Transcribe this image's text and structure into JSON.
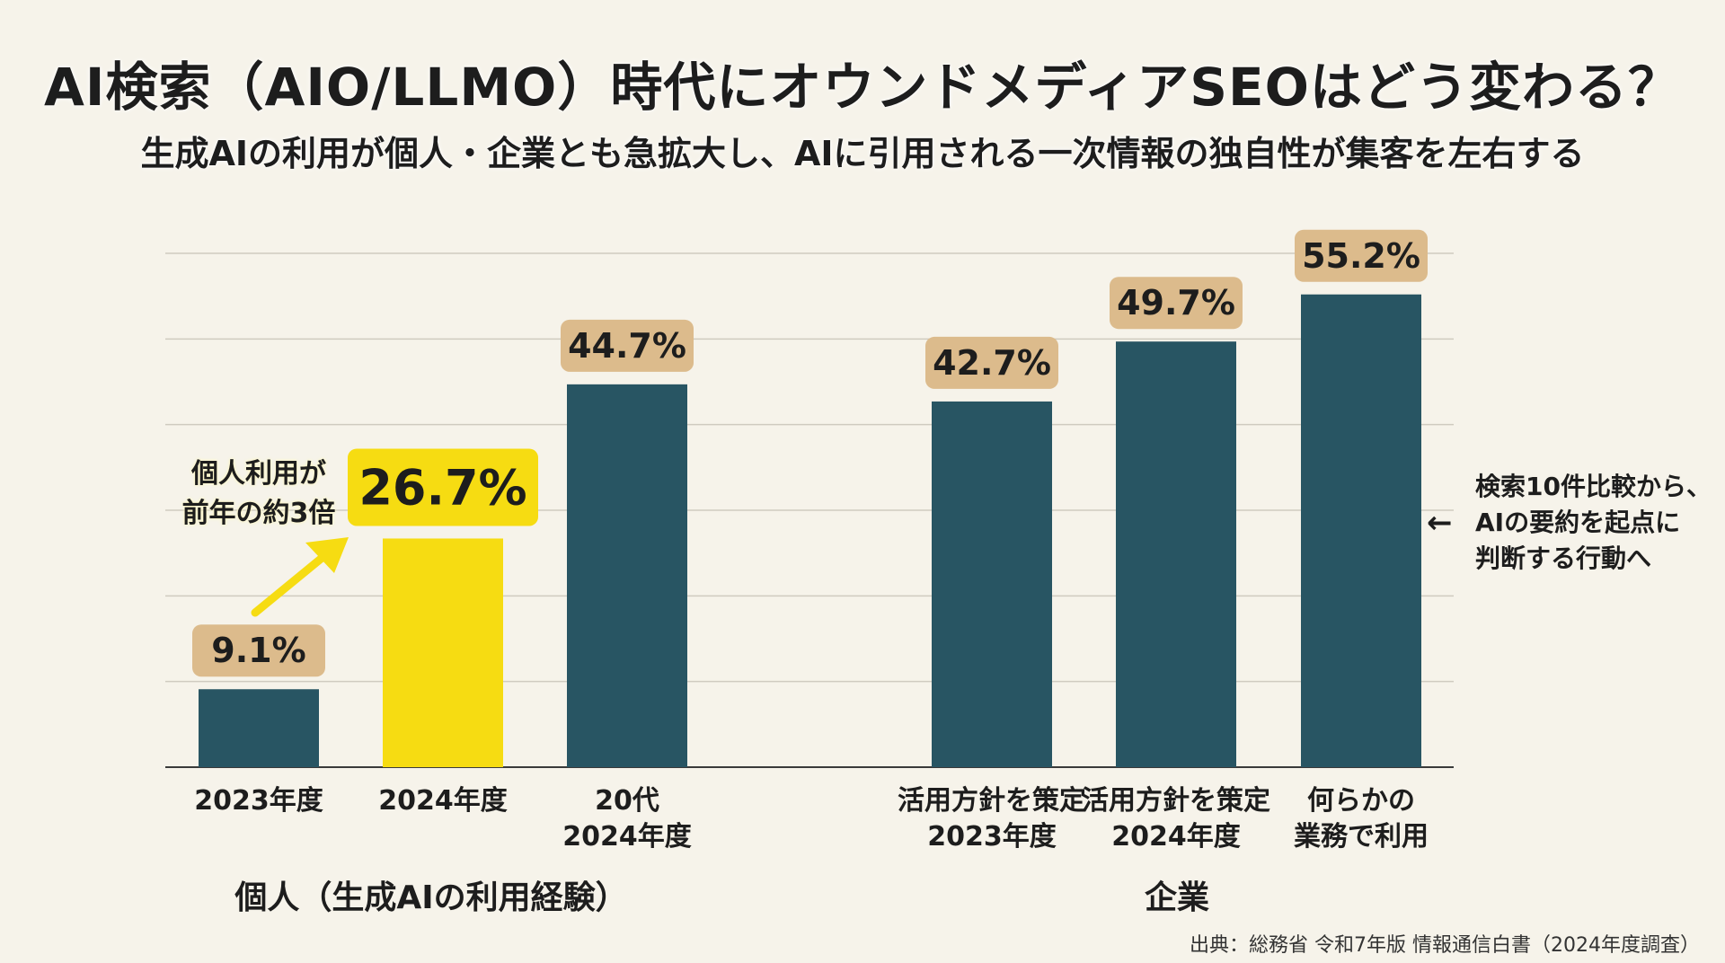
{
  "header": {
    "title": "AI検索（AIO/LLMO）時代にオウンドメディアSEOはどう変わる？",
    "subtitle": "生成AIの利用が個人・企業とも急拡大し、AIに引用される一次情報の独自性が集客を左右する"
  },
  "chart_data": {
    "type": "bar",
    "categories": [
      "2023年度",
      "2024年度",
      "20代\n2024年度",
      "活用方針を策定\n2023年度",
      "活用方針を策定\n2024年度",
      "何らかの\n業務で利用"
    ],
    "values": [
      9.1,
      26.7,
      44.7,
      42.7,
      49.7,
      55.2
    ],
    "value_labels": [
      "9.1%",
      "26.7%",
      "44.7%",
      "42.7%",
      "49.7%",
      "55.2%"
    ],
    "groups": [
      {
        "label": "個人（生成AIの利用経験）",
        "categories": [
          0,
          1,
          2
        ]
      },
      {
        "label": "企業",
        "categories": [
          3,
          4,
          5
        ]
      }
    ],
    "highlight_index": 1,
    "ylim": [
      0,
      60
    ],
    "grid": true,
    "unit": "%"
  },
  "annotations": {
    "callout": "個人利用が\n前年の約3倍",
    "side_note": "検索10件比較から、\nAIの要約を起点に\n判断する行動へ",
    "side_arrow": "←"
  },
  "footer": {
    "source": "出典：総務省 令和7年版 情報通信白書（2024年度調査）"
  },
  "colors": {
    "background": "#f6f3ea",
    "bar": "#285563",
    "highlight": "#f6dc12",
    "label_box": "#dcbb8c",
    "highlight_box": "#f6dc12",
    "grid": "#cfcbc0",
    "axis": "#3a3a3a"
  }
}
